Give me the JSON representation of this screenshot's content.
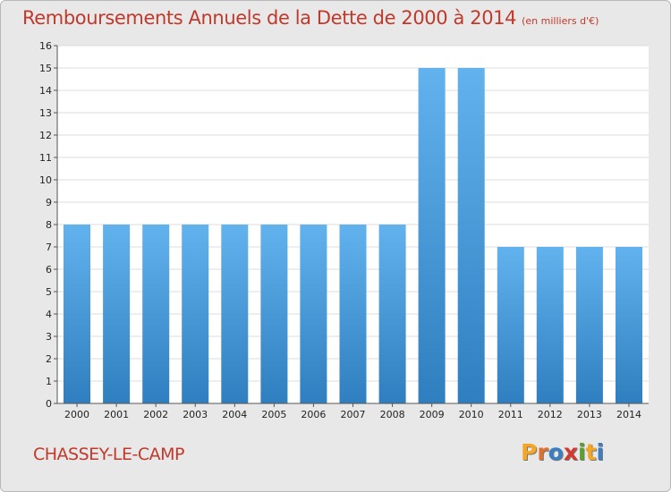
{
  "title": {
    "main": "Remboursements Annuels de la Dette de 2000 à 2014",
    "unit": "(en milliers d'€)"
  },
  "commune": "CHASSEY-LE-CAMP",
  "logo": {
    "letters": [
      "P",
      "r",
      "o",
      "x",
      "i",
      "t",
      "i"
    ],
    "colors": [
      "#f5a623",
      "#e2702a",
      "#3a7fc4",
      "#d43a2f",
      "#5aa02c",
      "#f5a623",
      "#3a7fc4"
    ]
  },
  "colors": {
    "bar": "#4a9fe0",
    "bar_light": "#62b2ee",
    "bar_dark": "#2f7fc0",
    "plot_bg": "#ffffff",
    "grid": "#dcdcdc",
    "text_accent": "#c0392b"
  },
  "chart_data": {
    "type": "bar",
    "categories": [
      "2000",
      "2001",
      "2002",
      "2003",
      "2004",
      "2005",
      "2006",
      "2007",
      "2008",
      "2009",
      "2010",
      "2011",
      "2012",
      "2013",
      "2014"
    ],
    "values": [
      8,
      8,
      8,
      8,
      8,
      8,
      8,
      8,
      8,
      15,
      15,
      7,
      7,
      7,
      7
    ],
    "data_labels": [
      "8",
      "8",
      "8",
      "8",
      "8",
      "8",
      "8",
      "8",
      "8",
      "15",
      "15",
      "7",
      "7",
      "7",
      "7"
    ],
    "yticks": [
      0,
      1,
      2,
      3,
      4,
      5,
      6,
      7,
      8,
      9,
      10,
      11,
      12,
      13,
      14,
      15,
      16
    ],
    "ylim": [
      0,
      16
    ],
    "grid": true,
    "xlabel": "",
    "ylabel": ""
  }
}
